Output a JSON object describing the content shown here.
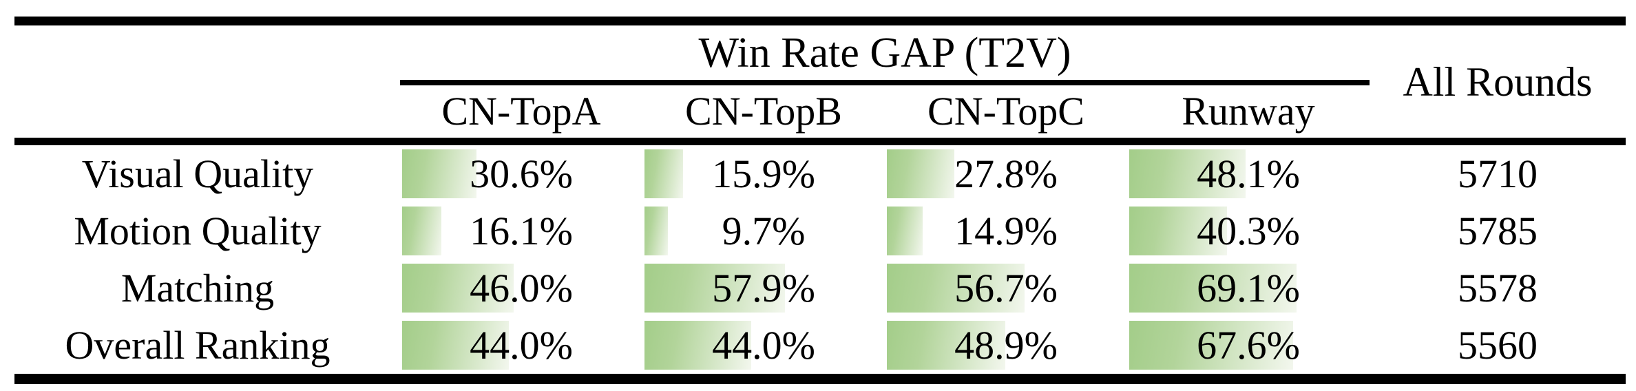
{
  "table": {
    "group_header": "Win Rate GAP (T2V)",
    "all_rounds_header": "All Rounds",
    "columns": [
      "CN-TopA",
      "CN-TopB",
      "CN-TopC",
      "Runway"
    ],
    "rows": [
      {
        "label": "Visual Quality",
        "cells": [
          {
            "text": "30.6%",
            "pct": 30.6
          },
          {
            "text": "15.9%",
            "pct": 15.9
          },
          {
            "text": "27.8%",
            "pct": 27.8
          },
          {
            "text": "48.1%",
            "pct": 48.1
          }
        ],
        "all_rounds": "5710"
      },
      {
        "label": "Motion Quality",
        "cells": [
          {
            "text": "16.1%",
            "pct": 16.1
          },
          {
            "text": "9.7%",
            "pct": 9.7
          },
          {
            "text": "14.9%",
            "pct": 14.9
          },
          {
            "text": "40.3%",
            "pct": 40.3
          }
        ],
        "all_rounds": "5785"
      },
      {
        "label": "Matching",
        "cells": [
          {
            "text": "46.0%",
            "pct": 46.0
          },
          {
            "text": "57.9%",
            "pct": 57.9
          },
          {
            "text": "56.7%",
            "pct": 56.7
          },
          {
            "text": "69.1%",
            "pct": 69.1
          }
        ],
        "all_rounds": "5578"
      },
      {
        "label": "Overall Ranking",
        "cells": [
          {
            "text": "44.0%",
            "pct": 44.0
          },
          {
            "text": "44.0%",
            "pct": 44.0
          },
          {
            "text": "48.9%",
            "pct": 48.9
          },
          {
            "text": "67.6%",
            "pct": 67.6
          }
        ],
        "all_rounds": "5560"
      }
    ],
    "colors": {
      "bar_gradient_start": "#a3cd89",
      "bar_gradient_mid": "#b2d49a",
      "bar_gradient_end": "#f3f7ee",
      "rule": "#000000",
      "text": "#000000",
      "background": "#ffffff"
    }
  },
  "chart_data": {
    "type": "table",
    "title": "Win Rate GAP (T2V)",
    "categories": [
      "CN-TopA",
      "CN-TopB",
      "CN-TopC",
      "Runway"
    ],
    "series": [
      {
        "name": "Visual Quality",
        "values": [
          30.6,
          15.9,
          27.8,
          48.1
        ],
        "all_rounds": 5710
      },
      {
        "name": "Motion Quality",
        "values": [
          16.1,
          9.7,
          14.9,
          40.3
        ],
        "all_rounds": 5785
      },
      {
        "name": "Matching",
        "values": [
          46.0,
          57.9,
          56.7,
          69.1
        ],
        "all_rounds": 5578
      },
      {
        "name": "Overall Ranking",
        "values": [
          44.0,
          44.0,
          48.9,
          67.6
        ],
        "all_rounds": 5560
      }
    ],
    "value_unit": "%",
    "bar_scale": [
      0,
      100
    ],
    "extra_column": {
      "label": "All Rounds",
      "values": [
        5710,
        5785,
        5578,
        5560
      ]
    }
  }
}
